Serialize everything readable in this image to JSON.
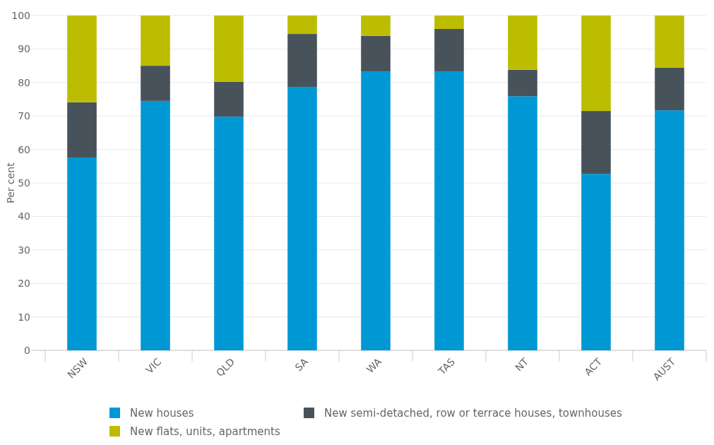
{
  "chart_data": {
    "type": "bar",
    "stacked": true,
    "ylabel": "Per cent",
    "categories": [
      "NSW",
      "VIC",
      "QLD",
      "SA",
      "WA",
      "TAS",
      "NT",
      "ACT",
      "AUST"
    ],
    "series": [
      {
        "name": "New houses",
        "color": "#0098d4",
        "values": [
          57.6,
          74.5,
          69.8,
          78.7,
          83.3,
          83.3,
          75.9,
          52.7,
          71.7
        ]
      },
      {
        "name": "New semi-detached, row or terrace houses, townhouses",
        "color": "#48525a",
        "values": [
          16.5,
          10.5,
          10.4,
          15.8,
          10.6,
          12.7,
          7.9,
          18.8,
          12.7
        ]
      },
      {
        "name": "New flats, units, apartments",
        "color": "#bcbd00",
        "values": [
          25.9,
          15.0,
          19.8,
          5.5,
          6.1,
          4.0,
          16.2,
          28.5,
          15.6
        ]
      }
    ],
    "ylim": [
      0,
      100
    ],
    "yticks": [
      0,
      10,
      20,
      30,
      40,
      50,
      60,
      70,
      80,
      90,
      100
    ],
    "grid": "y",
    "legend": "bottom"
  }
}
